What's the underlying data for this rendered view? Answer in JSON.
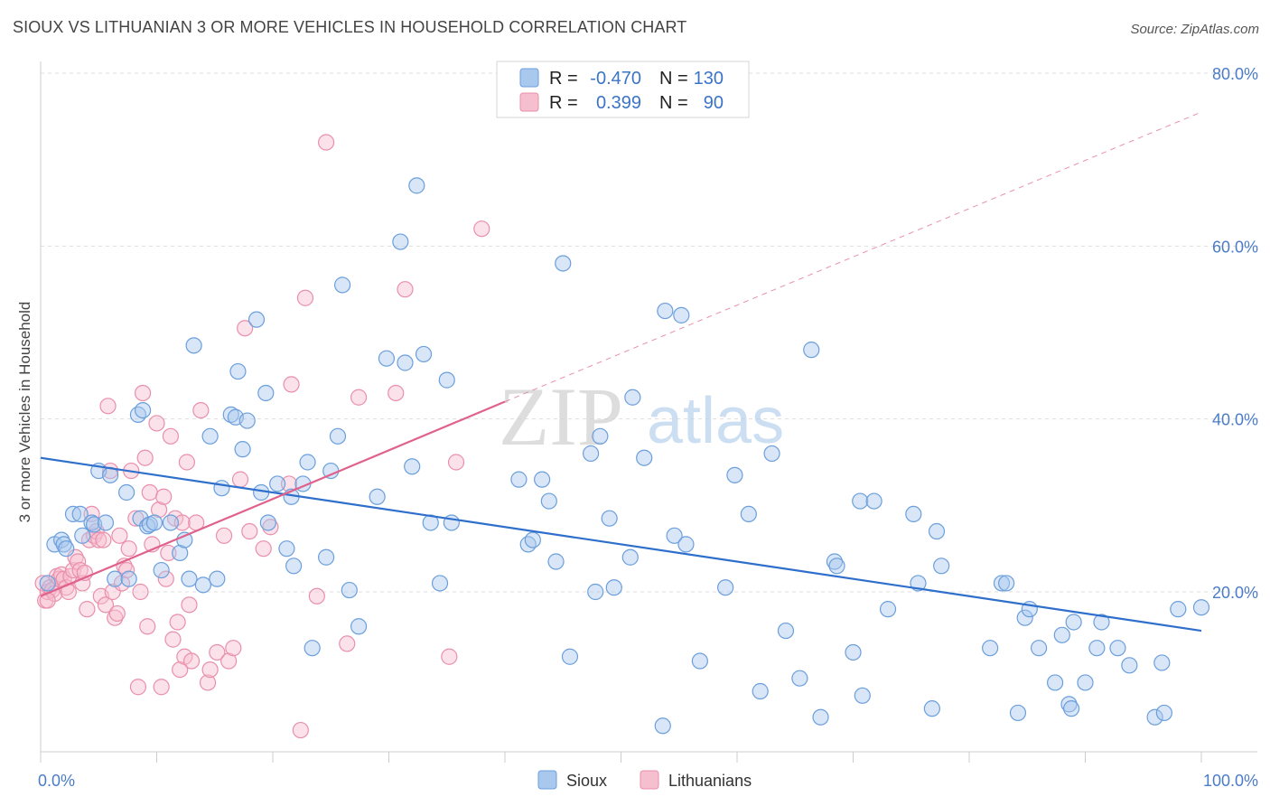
{
  "header": {
    "title": "SIOUX VS LITHUANIAN 3 OR MORE VEHICLES IN HOUSEHOLD CORRELATION CHART",
    "source": "Source: ZipAtlas.com"
  },
  "stats": [
    {
      "r_label": "R =",
      "r_value": "-0.470",
      "n_label": "N =",
      "n_value": "130"
    },
    {
      "r_label": "R =",
      "r_value": "0.399",
      "n_label": "N =",
      "n_value": "90"
    }
  ],
  "watermark": {
    "zip": "ZIP",
    "atlas": "atlas"
  },
  "colors": {
    "sioux_fill": "#a8c8ee",
    "sioux_stroke": "#6b9fdc",
    "sioux_line": "#2f6fcc",
    "lith_fill": "#f6bfd0",
    "lith_stroke": "#ea8fab",
    "lith_line": "#e0628c",
    "tick_text": "#4a7cc8",
    "grid": "#dddddd"
  },
  "chart_data": {
    "type": "scatter",
    "title": "SIOUX VS LITHUANIAN 3 OR MORE VEHICLES IN HOUSEHOLD CORRELATION CHART",
    "xlabel": "",
    "ylabel": "3 or more Vehicles in Household",
    "xlim": [
      0,
      100
    ],
    "ylim": [
      0,
      85
    ],
    "x_tick_labels": [
      "0.0%",
      "100.0%"
    ],
    "y_ticks": [
      20,
      40,
      60,
      80
    ],
    "y_tick_labels": [
      "20.0%",
      "40.0%",
      "60.0%",
      "80.0%"
    ],
    "grid": true,
    "legend_position": "bottom",
    "series": [
      {
        "name": "Sioux",
        "color": "#6b9fdc",
        "trend": {
          "x": [
            0,
            100
          ],
          "y": [
            35.5,
            15.5
          ]
        },
        "points": [
          [
            0.6,
            21
          ],
          [
            1.2,
            25.5
          ],
          [
            1.8,
            26
          ],
          [
            2,
            25.5
          ],
          [
            2.2,
            25
          ],
          [
            2.8,
            29
          ],
          [
            3.4,
            29
          ],
          [
            3.6,
            26.5
          ],
          [
            4.4,
            28
          ],
          [
            4.6,
            27.8
          ],
          [
            5,
            34
          ],
          [
            5.6,
            28
          ],
          [
            6,
            33.5
          ],
          [
            6.4,
            21.5
          ],
          [
            7.4,
            31.5
          ],
          [
            7.6,
            21.5
          ],
          [
            8.4,
            40.5
          ],
          [
            8.8,
            41
          ],
          [
            8.6,
            28.5
          ],
          [
            9.2,
            27.6
          ],
          [
            9.4,
            27.8
          ],
          [
            9.8,
            28
          ],
          [
            10.4,
            22.5
          ],
          [
            11.2,
            28
          ],
          [
            12,
            24.5
          ],
          [
            12.4,
            26
          ],
          [
            12.8,
            21.5
          ],
          [
            13.2,
            48.5
          ],
          [
            14,
            20.8
          ],
          [
            14.6,
            38
          ],
          [
            15.2,
            21.5
          ],
          [
            15.6,
            32
          ],
          [
            16.4,
            40.5
          ],
          [
            16.8,
            40.2
          ],
          [
            17,
            45.5
          ],
          [
            17.4,
            36.5
          ],
          [
            17.8,
            39.8
          ],
          [
            18.6,
            51.5
          ],
          [
            19,
            31.5
          ],
          [
            19.4,
            43
          ],
          [
            19.6,
            28
          ],
          [
            20.4,
            32.5
          ],
          [
            21.2,
            25
          ],
          [
            21.6,
            31
          ],
          [
            21.8,
            23
          ],
          [
            22.6,
            32.5
          ],
          [
            23,
            35
          ],
          [
            23.4,
            13.5
          ],
          [
            24.6,
            24
          ],
          [
            25,
            34
          ],
          [
            25.6,
            38
          ],
          [
            26,
            55.5
          ],
          [
            26.6,
            20.2
          ],
          [
            27.4,
            16
          ],
          [
            29,
            31
          ],
          [
            29.8,
            47
          ],
          [
            31,
            60.5
          ],
          [
            31.4,
            46.5
          ],
          [
            32,
            34.5
          ],
          [
            32.4,
            67
          ],
          [
            33,
            47.5
          ],
          [
            33.6,
            28
          ],
          [
            34.4,
            21
          ],
          [
            35,
            44.5
          ],
          [
            35.4,
            28
          ],
          [
            41.2,
            33
          ],
          [
            42,
            25.5
          ],
          [
            42.4,
            26
          ],
          [
            43.2,
            33
          ],
          [
            43.8,
            30.5
          ],
          [
            44.4,
            23.5
          ],
          [
            45,
            58
          ],
          [
            45.6,
            12.5
          ],
          [
            47.4,
            36
          ],
          [
            47.8,
            20
          ],
          [
            48.2,
            38
          ],
          [
            49,
            28.5
          ],
          [
            49.4,
            20.5
          ],
          [
            50.8,
            24
          ],
          [
            51,
            42.5
          ],
          [
            52,
            35.5
          ],
          [
            53.6,
            4.5
          ],
          [
            53.8,
            52.5
          ],
          [
            54.6,
            26.5
          ],
          [
            55.2,
            52
          ],
          [
            55.6,
            25.5
          ],
          [
            56.8,
            12
          ],
          [
            59,
            20.5
          ],
          [
            59.8,
            33.5
          ],
          [
            61,
            29
          ],
          [
            62,
            8.5
          ],
          [
            63,
            36
          ],
          [
            64.2,
            15.5
          ],
          [
            65.4,
            10
          ],
          [
            66.4,
            48
          ],
          [
            67.2,
            5.5
          ],
          [
            68.4,
            23.5
          ],
          [
            68.6,
            23
          ],
          [
            70,
            13
          ],
          [
            70.8,
            8
          ],
          [
            70.6,
            30.5
          ],
          [
            71.8,
            30.5
          ],
          [
            73,
            18
          ],
          [
            75.2,
            29
          ],
          [
            75.6,
            21
          ],
          [
            76.8,
            6.5
          ],
          [
            77.2,
            27
          ],
          [
            77.6,
            23
          ],
          [
            81.8,
            13.5
          ],
          [
            82.8,
            21
          ],
          [
            83.2,
            21
          ],
          [
            84.2,
            6
          ],
          [
            84.8,
            17
          ],
          [
            85.2,
            18
          ],
          [
            86,
            13.5
          ],
          [
            87.4,
            9.5
          ],
          [
            88,
            15
          ],
          [
            88.6,
            7
          ],
          [
            88.8,
            6.5
          ],
          [
            89,
            16.5
          ],
          [
            90,
            9.5
          ],
          [
            91,
            13.5
          ],
          [
            91.4,
            16.5
          ],
          [
            92.8,
            13.5
          ],
          [
            93.8,
            11.5
          ],
          [
            96,
            5.5
          ],
          [
            96.6,
            11.8
          ],
          [
            96.8,
            6
          ],
          [
            98,
            18
          ],
          [
            100,
            18.2
          ]
        ]
      },
      {
        "name": "Lithuanians",
        "color": "#ea8fab",
        "trend": {
          "x": [
            0,
            40
          ],
          "y": [
            19.5,
            42
          ],
          "dash_to": {
            "x": 100,
            "y": 75.5
          }
        },
        "points": [
          [
            0.2,
            21
          ],
          [
            0.4,
            19
          ],
          [
            0.6,
            20
          ],
          [
            0.8,
            20.5
          ],
          [
            1,
            20.2
          ],
          [
            1.2,
            19.8
          ],
          [
            1.4,
            21.8
          ],
          [
            1.6,
            21.5
          ],
          [
            1.8,
            22
          ],
          [
            2,
            21.5
          ],
          [
            2.2,
            20.5
          ],
          [
            2.4,
            20
          ],
          [
            2.6,
            21.8
          ],
          [
            2.8,
            22.5
          ],
          [
            3,
            24
          ],
          [
            3.2,
            23.5
          ],
          [
            3.4,
            22.5
          ],
          [
            3.6,
            21
          ],
          [
            3.8,
            22.2
          ],
          [
            4,
            18
          ],
          [
            4.2,
            26
          ],
          [
            4.4,
            29
          ],
          [
            4.6,
            26.5
          ],
          [
            4.8,
            27
          ],
          [
            5,
            26
          ],
          [
            5.2,
            19.5
          ],
          [
            5.4,
            26
          ],
          [
            5.6,
            18.5
          ],
          [
            5.8,
            41.5
          ],
          [
            6,
            34
          ],
          [
            6.2,
            20
          ],
          [
            6.4,
            17
          ],
          [
            6.6,
            17.5
          ],
          [
            6.8,
            26.5
          ],
          [
            7,
            21
          ],
          [
            7.2,
            23
          ],
          [
            7.4,
            22.5
          ],
          [
            7.6,
            25
          ],
          [
            7.8,
            34
          ],
          [
            8.2,
            28.5
          ],
          [
            8.4,
            9
          ],
          [
            8.6,
            20
          ],
          [
            8.8,
            43
          ],
          [
            9,
            35.5
          ],
          [
            9.2,
            16
          ],
          [
            9.4,
            31.5
          ],
          [
            9.6,
            25.5
          ],
          [
            10,
            39.5
          ],
          [
            10.2,
            29.5
          ],
          [
            10.4,
            9
          ],
          [
            10.6,
            31
          ],
          [
            10.8,
            21.5
          ],
          [
            11,
            24.5
          ],
          [
            11.2,
            38
          ],
          [
            11.4,
            14.5
          ],
          [
            11.6,
            28.5
          ],
          [
            11.8,
            16.5
          ],
          [
            12,
            11
          ],
          [
            12.2,
            28
          ],
          [
            12.4,
            12.5
          ],
          [
            12.6,
            35
          ],
          [
            12.8,
            18.5
          ],
          [
            13,
            12
          ],
          [
            13.4,
            28
          ],
          [
            13.8,
            41
          ],
          [
            14.4,
            9.5
          ],
          [
            14.6,
            11
          ],
          [
            15.2,
            13
          ],
          [
            15.8,
            26.5
          ],
          [
            16.2,
            12
          ],
          [
            16.6,
            13.5
          ],
          [
            17.2,
            33
          ],
          [
            17.6,
            50.5
          ],
          [
            18,
            27
          ],
          [
            19.2,
            25
          ],
          [
            19.8,
            27.5
          ],
          [
            21.4,
            32.5
          ],
          [
            21.6,
            44
          ],
          [
            22.4,
            4
          ],
          [
            22.8,
            54
          ],
          [
            23.8,
            19.5
          ],
          [
            24.6,
            72
          ],
          [
            26.4,
            14
          ],
          [
            27.4,
            42.5
          ],
          [
            30.6,
            43
          ],
          [
            31.4,
            55
          ],
          [
            35.2,
            12.5
          ],
          [
            35.8,
            35
          ],
          [
            38,
            62
          ],
          [
            0.6,
            19
          ]
        ]
      }
    ]
  },
  "legend": {
    "items": [
      {
        "name": "Sioux"
      },
      {
        "name": "Lithuanians"
      }
    ]
  }
}
